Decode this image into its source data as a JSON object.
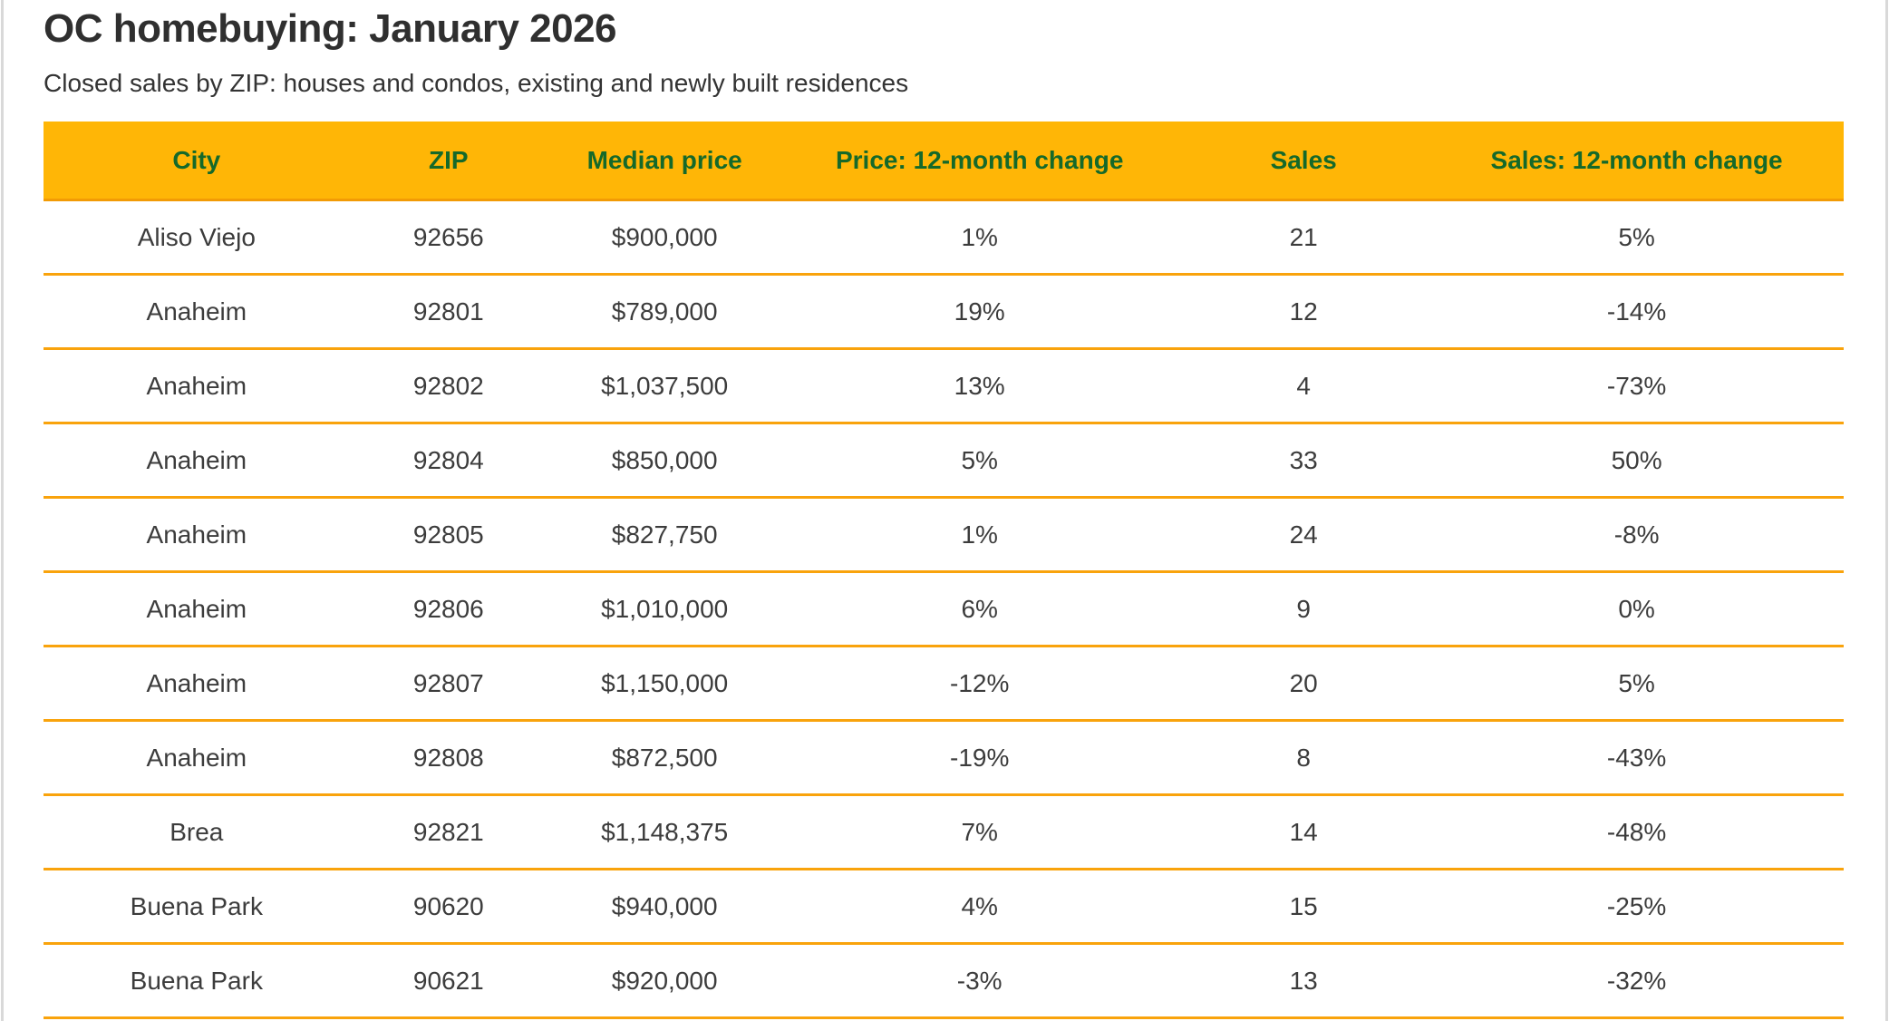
{
  "page": {
    "title": "OC homebuying: January 2026",
    "subtitle": "Closed sales by ZIP: houses and condos, existing and newly built residences"
  },
  "colors": {
    "header_background": "#ffb606",
    "header_text_green": "#15692a",
    "row_divider_orange": "#f9a30c",
    "title_text": "#2f2f2f",
    "body_text": "#3c3c3c",
    "window_edge_gray": "#d9d9d9"
  },
  "table": {
    "columns": [
      "City",
      "ZIP",
      "Median price",
      "Price: 12-month change",
      "Sales",
      "Sales: 12-month change"
    ],
    "rows": [
      [
        "Aliso Viejo",
        "92656",
        "$900,000",
        "1%",
        "21",
        "5%"
      ],
      [
        "Anaheim",
        "92801",
        "$789,000",
        "19%",
        "12",
        "-14%"
      ],
      [
        "Anaheim",
        "92802",
        "$1,037,500",
        "13%",
        "4",
        "-73%"
      ],
      [
        "Anaheim",
        "92804",
        "$850,000",
        "5%",
        "33",
        "50%"
      ],
      [
        "Anaheim",
        "92805",
        "$827,750",
        "1%",
        "24",
        "-8%"
      ],
      [
        "Anaheim",
        "92806",
        "$1,010,000",
        "6%",
        "9",
        "0%"
      ],
      [
        "Anaheim",
        "92807",
        "$1,150,000",
        "-12%",
        "20",
        "5%"
      ],
      [
        "Anaheim",
        "92808",
        "$872,500",
        "-19%",
        "8",
        "-43%"
      ],
      [
        "Brea",
        "92821",
        "$1,148,375",
        "7%",
        "14",
        "-48%"
      ],
      [
        "Buena Park",
        "90620",
        "$940,000",
        "4%",
        "15",
        "-25%"
      ],
      [
        "Buena Park",
        "90621",
        "$920,000",
        "-3%",
        "13",
        "-32%"
      ]
    ]
  },
  "chart_data": {
    "type": "table",
    "title": "OC homebuying: January 2026",
    "subtitle": "Closed sales by ZIP: houses and condos, existing and newly built residences",
    "columns": [
      "City",
      "ZIP",
      "Median price",
      "Price: 12-month change",
      "Sales",
      "Sales: 12-month change"
    ],
    "rows": [
      {
        "city": "Aliso Viejo",
        "zip": "92656",
        "median_price": 900000,
        "price_change_pct": 1,
        "sales": 21,
        "sales_change_pct": 5
      },
      {
        "city": "Anaheim",
        "zip": "92801",
        "median_price": 789000,
        "price_change_pct": 19,
        "sales": 12,
        "sales_change_pct": -14
      },
      {
        "city": "Anaheim",
        "zip": "92802",
        "median_price": 1037500,
        "price_change_pct": 13,
        "sales": 4,
        "sales_change_pct": -73
      },
      {
        "city": "Anaheim",
        "zip": "92804",
        "median_price": 850000,
        "price_change_pct": 5,
        "sales": 33,
        "sales_change_pct": 50
      },
      {
        "city": "Anaheim",
        "zip": "92805",
        "median_price": 827750,
        "price_change_pct": 1,
        "sales": 24,
        "sales_change_pct": -8
      },
      {
        "city": "Anaheim",
        "zip": "92806",
        "median_price": 1010000,
        "price_change_pct": 6,
        "sales": 9,
        "sales_change_pct": 0
      },
      {
        "city": "Anaheim",
        "zip": "92807",
        "median_price": 1150000,
        "price_change_pct": -12,
        "sales": 20,
        "sales_change_pct": 5
      },
      {
        "city": "Anaheim",
        "zip": "92808",
        "median_price": 872500,
        "price_change_pct": -19,
        "sales": 8,
        "sales_change_pct": -43
      },
      {
        "city": "Brea",
        "zip": "92821",
        "median_price": 1148375,
        "price_change_pct": 7,
        "sales": 14,
        "sales_change_pct": -48
      },
      {
        "city": "Buena Park",
        "zip": "90620",
        "median_price": 940000,
        "price_change_pct": 4,
        "sales": 15,
        "sales_change_pct": -25
      },
      {
        "city": "Buena Park",
        "zip": "90621",
        "median_price": 920000,
        "price_change_pct": -3,
        "sales": 13,
        "sales_change_pct": -32
      }
    ]
  }
}
